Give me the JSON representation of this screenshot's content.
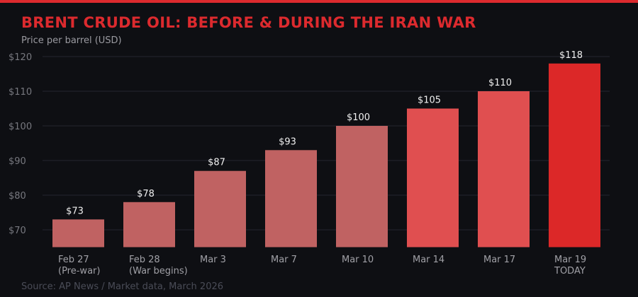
{
  "header": {
    "title": "BRENT CRUDE OIL: BEFORE & DURING THE IRAN WAR",
    "subtitle": "Price per barrel (USD)"
  },
  "footer": {
    "source": "Source: AP News / Market data, March 2026"
  },
  "chart_data": {
    "type": "bar",
    "title": "BRENT CRUDE OIL: BEFORE & DURING THE IRAN WAR",
    "ylabel": "Price per barrel (USD)",
    "categories": [
      [
        "Feb 27",
        "(Pre-war)"
      ],
      [
        "Feb 28",
        "(War begins)"
      ],
      [
        "Mar 3"
      ],
      [
        "Mar 7"
      ],
      [
        "Mar 10"
      ],
      [
        "Mar 14"
      ],
      [
        "Mar 17"
      ],
      [
        "Mar 19",
        "TODAY"
      ]
    ],
    "values": [
      73,
      78,
      87,
      93,
      100,
      105,
      110,
      118
    ],
    "data_labels": [
      "$73",
      "$78",
      "$87",
      "$93",
      "$100",
      "$105",
      "$110",
      "$118"
    ],
    "bar_colors": [
      "#c06262",
      "#c06262",
      "#c06262",
      "#c06262",
      "#c06262",
      "#e04f50",
      "#e04f50",
      "#dc2828"
    ],
    "ylim": [
      65,
      120
    ],
    "yticks": [
      70,
      80,
      90,
      100,
      110,
      120
    ],
    "ytick_labels": [
      "$70",
      "$80",
      "$90",
      "$100",
      "$110",
      "$120"
    ],
    "grid": true,
    "colors": {
      "title": "#dc2a2e",
      "grid": "#24252f",
      "axis_text": "#77787f",
      "label_text": "#a0a0a6",
      "value_text": "#f0f0f0"
    }
  }
}
